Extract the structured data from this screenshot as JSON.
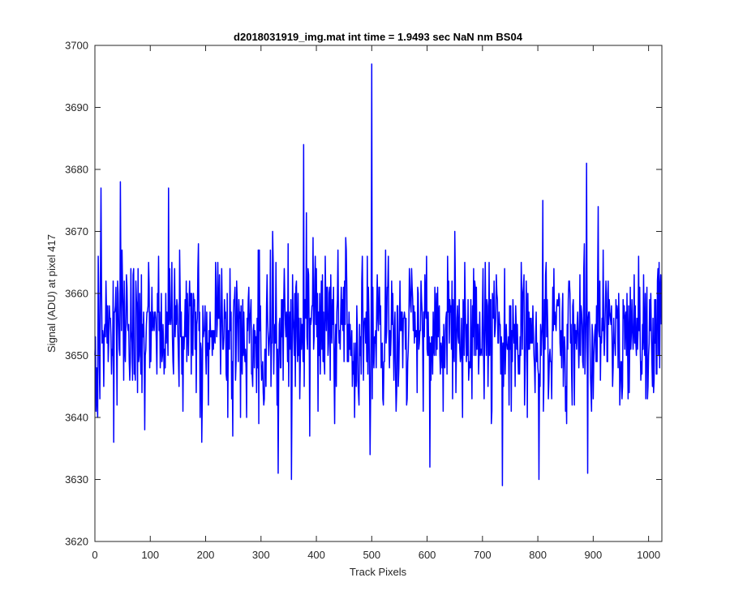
{
  "chart_data": {
    "type": "line",
    "title": "d2018031919_img.mat int time = 1.9493 sec  NaN nm BS04",
    "xlabel": "Track Pixels",
    "ylabel": "Signal (ADU) at pixel 417",
    "xlim": [
      0,
      1024
    ],
    "ylim": [
      3620,
      3700
    ],
    "xticks": [
      0,
      100,
      200,
      300,
      400,
      500,
      600,
      700,
      800,
      900,
      1000
    ],
    "yticks": [
      3620,
      3630,
      3640,
      3650,
      3660,
      3670,
      3680,
      3690,
      3700
    ],
    "xtick_labels": [
      "0",
      "100",
      "200",
      "300",
      "400",
      "500",
      "600",
      "700",
      "800",
      "900",
      "1000"
    ],
    "ytick_labels": [
      "3620",
      "3630",
      "3640",
      "3650",
      "3660",
      "3670",
      "3680",
      "3690",
      "3700"
    ],
    "grid": false,
    "legend": "none",
    "line_color": "#0000ff",
    "n_points": 1024,
    "series": [
      {
        "name": "",
        "approx_mean": 3654,
        "approx_std": 6,
        "notable_points": [
          {
            "x": 0,
            "y": 3650
          },
          {
            "x": 5,
            "y": 3640
          },
          {
            "x": 11,
            "y": 3677
          },
          {
            "x": 34,
            "y": 3636
          },
          {
            "x": 46,
            "y": 3678
          },
          {
            "x": 133,
            "y": 3677
          },
          {
            "x": 331,
            "y": 3631
          },
          {
            "x": 355,
            "y": 3630
          },
          {
            "x": 377,
            "y": 3684
          },
          {
            "x": 500,
            "y": 3697
          },
          {
            "x": 605,
            "y": 3632
          },
          {
            "x": 736,
            "y": 3629
          },
          {
            "x": 802,
            "y": 3630
          },
          {
            "x": 888,
            "y": 3681
          },
          {
            "x": 890,
            "y": 3631
          },
          {
            "x": 1023,
            "y": 3655
          }
        ]
      }
    ]
  }
}
